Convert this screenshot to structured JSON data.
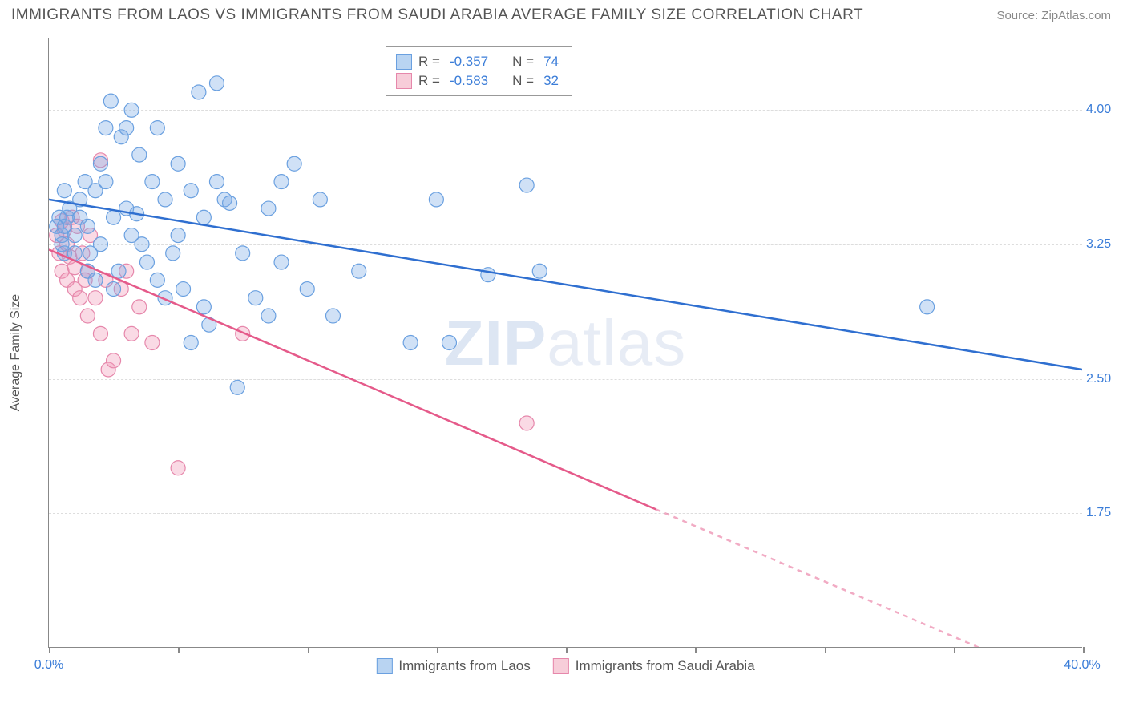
{
  "header": {
    "title": "IMMIGRANTS FROM LAOS VS IMMIGRANTS FROM SAUDI ARABIA AVERAGE FAMILY SIZE CORRELATION CHART",
    "source": "Source: ZipAtlas.com"
  },
  "chart": {
    "type": "scatter",
    "ylabel": "Average Family Size",
    "xlim": [
      0,
      40
    ],
    "ylim": [
      1.0,
      4.4
    ],
    "yticks": [
      {
        "value": 1.75,
        "label": "1.75"
      },
      {
        "value": 2.5,
        "label": "2.50"
      },
      {
        "value": 3.25,
        "label": "3.25"
      },
      {
        "value": 4.0,
        "label": "4.00"
      }
    ],
    "xticks_major": [
      0,
      40
    ],
    "xticks_minor_count": 7,
    "xtick_labels": {
      "min": "0.0%",
      "max": "40.0%"
    },
    "grid_color": "#dddddd",
    "axis_color": "#888888",
    "background_color": "#ffffff",
    "series": [
      {
        "name": "Immigrants from Laos",
        "color_fill": "rgba(120,170,230,0.35)",
        "color_stroke": "#6aa0e0",
        "swatch_fill": "#b9d4f2",
        "swatch_stroke": "#6aa0e0",
        "trend": {
          "x1": 0,
          "y1": 3.5,
          "x2": 40,
          "y2": 2.55,
          "solid_end_x": 40,
          "color": "#2f6fd0",
          "width": 2.5
        },
        "stats": {
          "R": "-0.357",
          "N": "74"
        },
        "points": [
          [
            0.3,
            3.35
          ],
          [
            0.4,
            3.4
          ],
          [
            0.5,
            3.3
          ],
          [
            0.6,
            3.35
          ],
          [
            0.5,
            3.25
          ],
          [
            0.7,
            3.4
          ],
          [
            0.6,
            3.2
          ],
          [
            0.8,
            3.45
          ],
          [
            0.6,
            3.55
          ],
          [
            1.0,
            3.3
          ],
          [
            1.0,
            3.2
          ],
          [
            1.2,
            3.5
          ],
          [
            1.2,
            3.4
          ],
          [
            1.4,
            3.6
          ],
          [
            1.5,
            3.1
          ],
          [
            1.5,
            3.35
          ],
          [
            1.6,
            3.2
          ],
          [
            1.8,
            3.05
          ],
          [
            1.8,
            3.55
          ],
          [
            2.0,
            3.25
          ],
          [
            2.0,
            3.7
          ],
          [
            2.2,
            3.9
          ],
          [
            2.2,
            3.6
          ],
          [
            2.4,
            4.05
          ],
          [
            2.5,
            3.0
          ],
          [
            2.5,
            3.4
          ],
          [
            2.7,
            3.1
          ],
          [
            2.8,
            3.85
          ],
          [
            3.0,
            3.9
          ],
          [
            3.0,
            3.45
          ],
          [
            3.2,
            3.3
          ],
          [
            3.2,
            4.0
          ],
          [
            3.4,
            3.42
          ],
          [
            3.5,
            3.75
          ],
          [
            3.6,
            3.25
          ],
          [
            3.8,
            3.15
          ],
          [
            4.0,
            3.6
          ],
          [
            4.2,
            3.9
          ],
          [
            4.2,
            3.05
          ],
          [
            4.5,
            3.5
          ],
          [
            4.5,
            2.95
          ],
          [
            4.8,
            3.2
          ],
          [
            5.0,
            3.3
          ],
          [
            5.0,
            3.7
          ],
          [
            5.2,
            3.0
          ],
          [
            5.5,
            2.7
          ],
          [
            5.5,
            3.55
          ],
          [
            5.8,
            4.1
          ],
          [
            6.0,
            3.4
          ],
          [
            6.0,
            2.9
          ],
          [
            6.2,
            2.8
          ],
          [
            6.5,
            3.6
          ],
          [
            6.5,
            4.15
          ],
          [
            6.8,
            3.5
          ],
          [
            7.0,
            3.48
          ],
          [
            7.3,
            2.45
          ],
          [
            7.5,
            3.2
          ],
          [
            8.0,
            2.95
          ],
          [
            8.5,
            3.45
          ],
          [
            8.5,
            2.85
          ],
          [
            9.0,
            3.6
          ],
          [
            9.0,
            3.15
          ],
          [
            9.5,
            3.7
          ],
          [
            10.0,
            3.0
          ],
          [
            10.5,
            3.5
          ],
          [
            11.0,
            2.85
          ],
          [
            12.0,
            3.1
          ],
          [
            14.0,
            2.7
          ],
          [
            15.0,
            3.5
          ],
          [
            15.5,
            2.7
          ],
          [
            17.0,
            3.08
          ],
          [
            18.5,
            3.58
          ],
          [
            19.0,
            3.1
          ],
          [
            34.0,
            2.9
          ]
        ]
      },
      {
        "name": "Immigrants from Saudi Arabia",
        "color_fill": "rgba(240,150,180,0.35)",
        "color_stroke": "#e687ab",
        "swatch_fill": "#f7cdd9",
        "swatch_stroke": "#e687ab",
        "trend": {
          "x1": 0,
          "y1": 3.22,
          "x2": 40,
          "y2": 0.75,
          "solid_end_x": 23.5,
          "color": "#e55a8a",
          "width": 2.5
        },
        "stats": {
          "R": "-0.583",
          "N": "32"
        },
        "points": [
          [
            0.3,
            3.3
          ],
          [
            0.4,
            3.2
          ],
          [
            0.5,
            3.38
          ],
          [
            0.5,
            3.1
          ],
          [
            0.6,
            3.33
          ],
          [
            0.7,
            3.25
          ],
          [
            0.7,
            3.05
          ],
          [
            0.8,
            3.18
          ],
          [
            0.9,
            3.4
          ],
          [
            1.0,
            3.0
          ],
          [
            1.0,
            3.12
          ],
          [
            1.1,
            3.35
          ],
          [
            1.2,
            2.95
          ],
          [
            1.3,
            3.2
          ],
          [
            1.4,
            3.05
          ],
          [
            1.5,
            2.85
          ],
          [
            1.5,
            3.1
          ],
          [
            1.6,
            3.3
          ],
          [
            1.8,
            2.95
          ],
          [
            2.0,
            2.75
          ],
          [
            2.0,
            3.72
          ],
          [
            2.2,
            3.05
          ],
          [
            2.3,
            2.55
          ],
          [
            2.5,
            2.6
          ],
          [
            2.8,
            3.0
          ],
          [
            3.0,
            3.1
          ],
          [
            3.2,
            2.75
          ],
          [
            3.5,
            2.9
          ],
          [
            4.0,
            2.7
          ],
          [
            5.0,
            2.0
          ],
          [
            7.5,
            2.75
          ],
          [
            18.5,
            2.25
          ]
        ]
      }
    ],
    "marker_radius": 9,
    "marker_stroke_width": 1.2
  },
  "watermark": {
    "prefix": "ZIP",
    "suffix": "atlas"
  },
  "legend_labels": {
    "R": "R =",
    "N": "N ="
  }
}
